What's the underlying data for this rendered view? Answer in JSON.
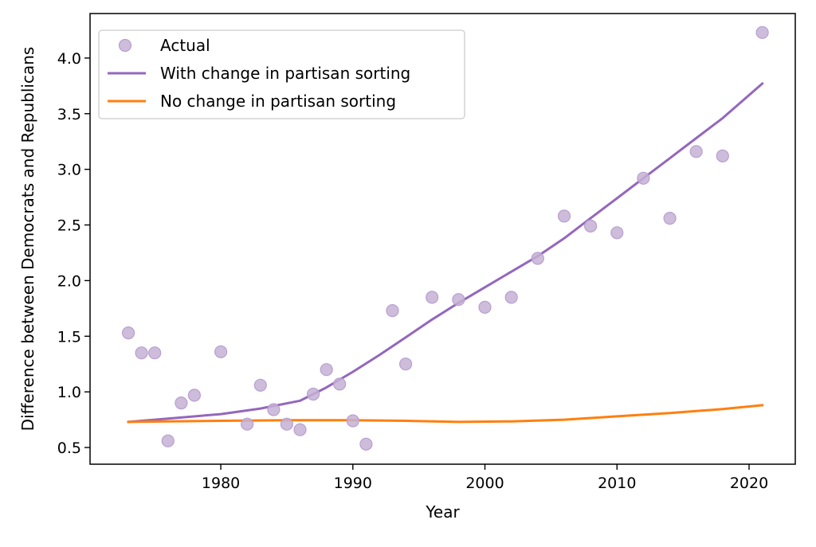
{
  "chart_data": {
    "type": "scatter",
    "xlabel": "Year",
    "ylabel": "Difference between Democrats and Republicans",
    "xlim": [
      1970.1,
      2023.5
    ],
    "ylim": [
      0.35,
      4.4
    ],
    "xticks": [
      1980,
      1990,
      2000,
      2010,
      2020
    ],
    "yticks": [
      0.5,
      1.0,
      1.5,
      2.0,
      2.5,
      3.0,
      3.5,
      4.0
    ],
    "xtick_labels": [
      "1980",
      "1990",
      "2000",
      "2010",
      "2020"
    ],
    "ytick_labels": [
      "0.5",
      "1.0",
      "1.5",
      "2.0",
      "2.5",
      "3.0",
      "3.5",
      "4.0"
    ],
    "grid": false,
    "legend_position": "top-left",
    "series": [
      {
        "name": "Actual",
        "kind": "scatter",
        "color": "#c5b0d5",
        "edge_color": "#b89fd0",
        "x": [
          1973,
          1974,
          1975,
          1976,
          1977,
          1978,
          1980,
          1982,
          1983,
          1984,
          1985,
          1986,
          1987,
          1988,
          1989,
          1990,
          1991,
          1993,
          1994,
          1996,
          1998,
          2000,
          2002,
          2004,
          2006,
          2008,
          2010,
          2012,
          2014,
          2016,
          2018,
          2021
        ],
        "y": [
          1.53,
          1.35,
          1.35,
          0.56,
          0.9,
          0.97,
          1.36,
          0.71,
          1.06,
          0.84,
          0.71,
          0.66,
          0.98,
          1.2,
          1.07,
          0.74,
          0.53,
          1.73,
          1.25,
          1.85,
          1.83,
          1.76,
          1.85,
          2.2,
          2.58,
          2.49,
          2.43,
          2.92,
          2.56,
          3.16,
          3.12,
          4.23
        ]
      },
      {
        "name": "With change in partisan sorting",
        "kind": "line",
        "color": "#9467bd",
        "x": [
          1973,
          1976,
          1980,
          1983,
          1986,
          1988,
          1990,
          1992,
          1994,
          1996,
          1998,
          2000,
          2002,
          2004,
          2006,
          2008,
          2010,
          2012,
          2014,
          2016,
          2018,
          2021
        ],
        "y": [
          0.73,
          0.76,
          0.8,
          0.85,
          0.92,
          1.04,
          1.18,
          1.33,
          1.49,
          1.65,
          1.8,
          1.94,
          2.08,
          2.22,
          2.38,
          2.56,
          2.74,
          2.92,
          3.1,
          3.28,
          3.46,
          3.77
        ]
      },
      {
        "name": "No change in partisan sorting",
        "kind": "line",
        "color": "#ff7f0e",
        "x": [
          1973,
          1976,
          1980,
          1985,
          1990,
          1994,
          1998,
          2002,
          2006,
          2010,
          2014,
          2018,
          2021
        ],
        "y": [
          0.73,
          0.735,
          0.74,
          0.745,
          0.745,
          0.74,
          0.73,
          0.735,
          0.75,
          0.78,
          0.81,
          0.845,
          0.88
        ]
      }
    ]
  }
}
